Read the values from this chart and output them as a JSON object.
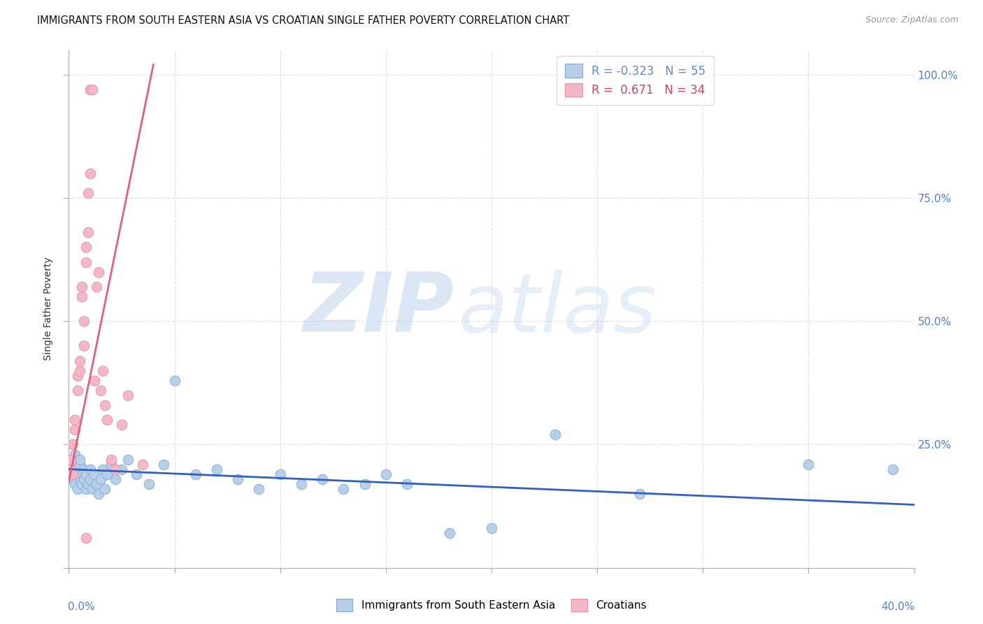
{
  "title": "IMMIGRANTS FROM SOUTH EASTERN ASIA VS CROATIAN SINGLE FATHER POVERTY CORRELATION CHART",
  "source": "Source: ZipAtlas.com",
  "ylabel": "Single Father Poverty",
  "xmin": 0.0,
  "xmax": 0.4,
  "ymin": 0.0,
  "ymax": 1.05,
  "blue_scatter_x": [
    0.001,
    0.001,
    0.002,
    0.002,
    0.002,
    0.003,
    0.003,
    0.003,
    0.004,
    0.004,
    0.005,
    0.005,
    0.005,
    0.006,
    0.006,
    0.007,
    0.007,
    0.008,
    0.008,
    0.009,
    0.01,
    0.01,
    0.011,
    0.012,
    0.013,
    0.014,
    0.015,
    0.016,
    0.017,
    0.018,
    0.02,
    0.022,
    0.025,
    0.028,
    0.032,
    0.038,
    0.045,
    0.05,
    0.06,
    0.07,
    0.08,
    0.09,
    0.1,
    0.11,
    0.12,
    0.13,
    0.14,
    0.15,
    0.16,
    0.18,
    0.2,
    0.23,
    0.27,
    0.35,
    0.39
  ],
  "blue_scatter_y": [
    0.2,
    0.22,
    0.19,
    0.21,
    0.18,
    0.17,
    0.2,
    0.23,
    0.19,
    0.16,
    0.21,
    0.18,
    0.22,
    0.17,
    0.19,
    0.18,
    0.2,
    0.16,
    0.19,
    0.17,
    0.2,
    0.18,
    0.16,
    0.19,
    0.17,
    0.15,
    0.18,
    0.2,
    0.16,
    0.19,
    0.21,
    0.18,
    0.2,
    0.22,
    0.19,
    0.17,
    0.21,
    0.38,
    0.19,
    0.2,
    0.18,
    0.16,
    0.19,
    0.17,
    0.18,
    0.16,
    0.17,
    0.19,
    0.17,
    0.07,
    0.08,
    0.27,
    0.15,
    0.21,
    0.2
  ],
  "pink_scatter_x": [
    0.001,
    0.001,
    0.002,
    0.002,
    0.003,
    0.003,
    0.004,
    0.004,
    0.005,
    0.005,
    0.006,
    0.006,
    0.007,
    0.007,
    0.008,
    0.008,
    0.009,
    0.009,
    0.01,
    0.01,
    0.011,
    0.012,
    0.013,
    0.014,
    0.015,
    0.016,
    0.017,
    0.018,
    0.02,
    0.022,
    0.025,
    0.028,
    0.035,
    0.008
  ],
  "pink_scatter_y": [
    0.2,
    0.22,
    0.19,
    0.25,
    0.3,
    0.28,
    0.36,
    0.39,
    0.4,
    0.42,
    0.55,
    0.57,
    0.45,
    0.5,
    0.62,
    0.65,
    0.68,
    0.76,
    0.8,
    0.97,
    0.97,
    0.38,
    0.57,
    0.6,
    0.36,
    0.4,
    0.33,
    0.3,
    0.22,
    0.2,
    0.29,
    0.35,
    0.21,
    0.06
  ],
  "blue_line_x": [
    0.0,
    0.4
  ],
  "blue_line_y": [
    0.2,
    0.128
  ],
  "pink_line_x": [
    0.0,
    0.04
  ],
  "pink_line_y": [
    0.175,
    1.02
  ],
  "watermark_zip": "ZIP",
  "watermark_atlas": "atlas",
  "background_color": "#ffffff",
  "scatter_size": 110,
  "blue_fill_color": "#b8cfe8",
  "pink_fill_color": "#f2b8c6",
  "blue_edge_color": "#8ab0d8",
  "pink_edge_color": "#e896a8",
  "blue_line_color": "#3060c0",
  "pink_line_color": "#e06080",
  "grid_color": "#e0e0e0",
  "right_tick_color": "#5080d0",
  "yticks": [
    0.0,
    0.25,
    0.5,
    0.75,
    1.0
  ],
  "ytick_labels_right": [
    "",
    "25.0%",
    "50.0%",
    "75.0%",
    "100.0%"
  ],
  "xticks": [
    0.0,
    0.05,
    0.1,
    0.15,
    0.2,
    0.25,
    0.3,
    0.35,
    0.4
  ],
  "legend_r1_label": "R = -0.323   N = 55",
  "legend_r2_label": "R =  0.671   N = 34",
  "legend_r1_color": "#6688cc",
  "legend_r2_color": "#cc4466",
  "bottom_legend_blue": "Immigrants from South Eastern Asia",
  "bottom_legend_pink": "Croatians"
}
